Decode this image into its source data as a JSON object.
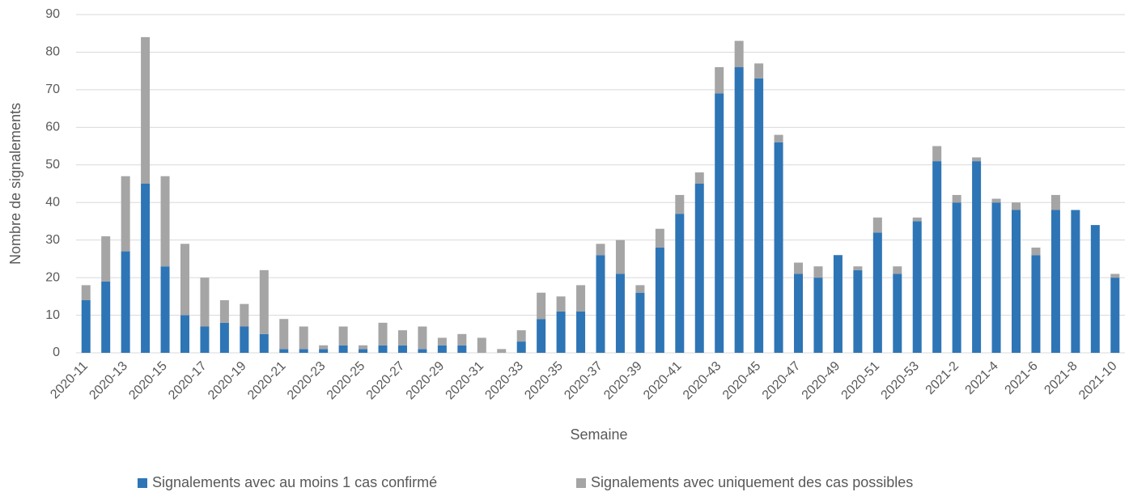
{
  "chart_data": {
    "type": "stacked_bar",
    "x_label": "Semaine",
    "y_label": "Nombre de signalements",
    "categories": [
      "2020-11",
      null,
      "2020-13",
      null,
      "2020-15",
      null,
      "2020-17",
      null,
      "2020-19",
      null,
      "2020-21",
      null,
      "2020-23",
      null,
      "2020-25",
      null,
      "2020-27",
      null,
      "2020-29",
      null,
      "2020-31",
      null,
      "2020-33",
      null,
      "2020-35",
      null,
      "2020-37",
      null,
      "2020-39",
      null,
      "2020-41",
      null,
      "2020-43",
      null,
      "2020-45",
      null,
      "2020-47",
      null,
      "2020-49",
      null,
      "2020-51",
      null,
      "2020-53",
      null,
      "2021-2",
      null,
      "2021-4",
      null,
      "2021-6",
      null,
      "2021-8",
      null,
      "2021-10"
    ],
    "series": [
      {
        "name": "Signalements avec au moins 1 cas confirmé",
        "color": "#2e75b6",
        "values": [
          14,
          19,
          27,
          45,
          23,
          10,
          7,
          8,
          7,
          5,
          1,
          1,
          1,
          2,
          1,
          2,
          2,
          1,
          2,
          2,
          0,
          0,
          3,
          9,
          11,
          11,
          26,
          21,
          16,
          28,
          37,
          45,
          69,
          76,
          73,
          56,
          21,
          20,
          26,
          22,
          32,
          21,
          35,
          51,
          40,
          51,
          40,
          38,
          26,
          38,
          38,
          34,
          20
        ]
      },
      {
        "name": "Signalements avec uniquement des cas possibles",
        "color": "#a5a5a5",
        "values": [
          4,
          12,
          20,
          39,
          24,
          19,
          13,
          6,
          6,
          17,
          8,
          6,
          1,
          5,
          1,
          6,
          4,
          6,
          2,
          3,
          4,
          1,
          3,
          7,
          4,
          7,
          3,
          9,
          2,
          5,
          5,
          3,
          7,
          7,
          4,
          2,
          3,
          3,
          0,
          1,
          4,
          2,
          1,
          4,
          2,
          1,
          1,
          2,
          2,
          4,
          0,
          0,
          1
        ]
      }
    ],
    "ylim": [
      0,
      90
    ],
    "yticks": [
      0,
      10,
      20,
      30,
      40,
      50,
      60,
      70,
      80,
      90
    ],
    "grid": true,
    "legend": "bottom"
  }
}
